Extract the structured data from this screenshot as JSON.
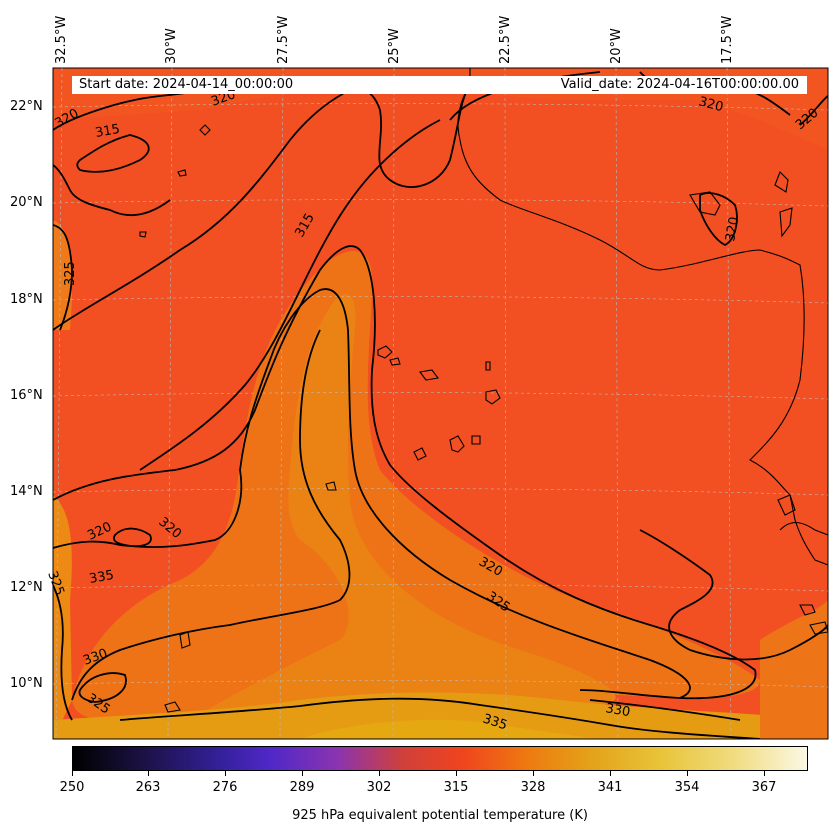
{
  "header": {
    "start_date": "Start date: 2024-04-14_00:00:00",
    "valid_date": "Valid_date: 2024-04-16T00:00:00.00"
  },
  "longitude_labels": [
    "32.5°W",
    "30°W",
    "27.5°W",
    "25°W",
    "22.5°W",
    "20°W",
    "17.5°W"
  ],
  "latitude_labels": [
    "22°N",
    "20°N",
    "18°N",
    "16°N",
    "14°N",
    "12°N",
    "10°N"
  ],
  "contour_labels": [
    "320",
    "315",
    "320",
    "320",
    "315",
    "325",
    "320",
    "320",
    "320",
    "320",
    "325",
    "335",
    "330",
    "325",
    "320",
    "330",
    "335",
    "325"
  ],
  "colorbar": {
    "ticks": [
      "250",
      "263",
      "276",
      "289",
      "302",
      "315",
      "328",
      "341",
      "354",
      "367"
    ],
    "label": "925 hPa equivalent potential temperature (K)",
    "colormap": "CMRmap-like: black → indigo → purple → red → orange → yellow → pale cream"
  },
  "colors": {
    "field_low": "#f24e20",
    "field_mid": "#f06a18",
    "field_high": "#e69a12",
    "contour": "#000000"
  }
}
